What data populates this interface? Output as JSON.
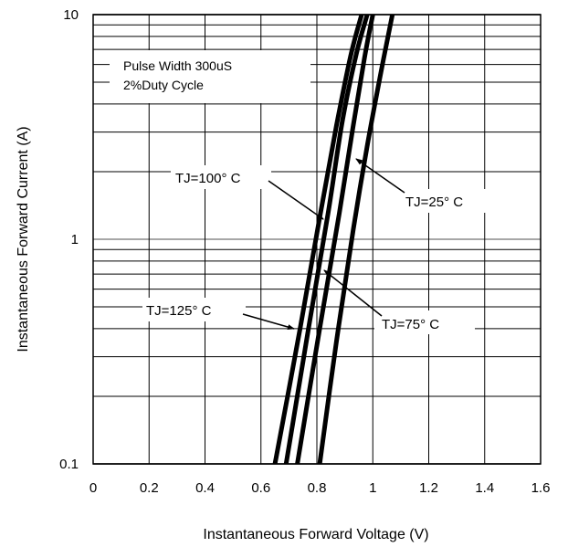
{
  "chart_data": {
    "type": "line",
    "title": "",
    "xlabel": "Instantaneous Forward Voltage (V)",
    "ylabel": "Instantaneous Forward Current (A)",
    "xlim": [
      0,
      1.6
    ],
    "ylim": [
      0.1,
      10
    ],
    "yscale": "log",
    "grid": true,
    "x_ticks": [
      "0",
      "0.2",
      "0.4",
      "0.6",
      "0.8",
      "1",
      "1.2",
      "1.4",
      "1.6"
    ],
    "y_ticks": [
      "0.1",
      "1",
      "10"
    ],
    "conditions": [
      "Pulse Width 300uS",
      "2%Duty Cycle"
    ],
    "series": [
      {
        "name": "TJ=125° C",
        "x": [
          0.65,
          0.74,
          0.81,
          0.87,
          0.92,
          0.96
        ],
        "y": [
          0.1,
          0.4,
          1.25,
          3.2,
          6.5,
          10
        ]
      },
      {
        "name": "TJ=100° C",
        "x": [
          0.69,
          0.77,
          0.84,
          0.89,
          0.94,
          0.98
        ],
        "y": [
          0.1,
          0.4,
          1.3,
          3.3,
          6.6,
          10
        ]
      },
      {
        "name": "TJ=75° C",
        "x": [
          0.73,
          0.81,
          0.88,
          0.93,
          0.97,
          1.0
        ],
        "y": [
          0.1,
          0.4,
          1.3,
          3.2,
          6.4,
          10
        ]
      },
      {
        "name": "TJ=25° C",
        "x": [
          0.81,
          0.87,
          0.93,
          0.98,
          1.03,
          1.07
        ],
        "y": [
          0.1,
          0.35,
          1.1,
          2.6,
          5.6,
          10
        ]
      }
    ],
    "annotations": [
      {
        "label": "TJ=100° C",
        "target_series": "TJ=100° C"
      },
      {
        "label": "TJ=25° C",
        "target_series": "TJ=25° C"
      },
      {
        "label": "TJ=125° C",
        "target_series": "TJ=125° C"
      },
      {
        "label": "TJ=75° C",
        "target_series": "TJ=75° C"
      }
    ]
  }
}
